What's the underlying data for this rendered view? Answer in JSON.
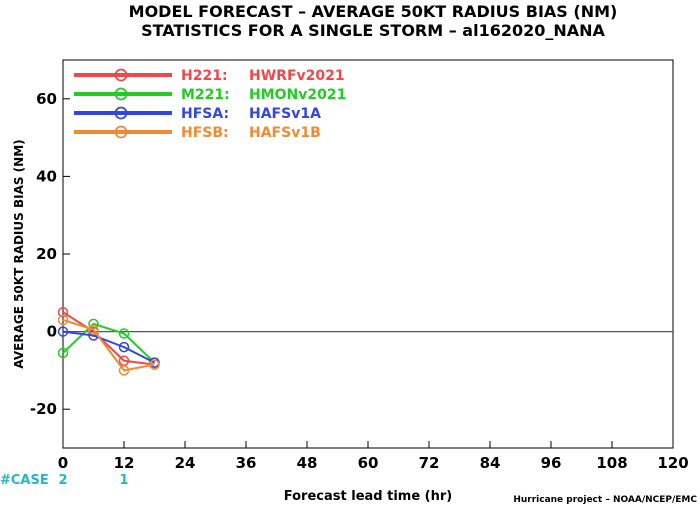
{
  "chart_data": {
    "type": "line",
    "title": "MODEL FORECAST – AVERAGE 50KT RADIUS BIAS (NM)",
    "subtitle": "STATISTICS FOR A SINGLE STORM – al162020_NANA",
    "xlabel": "Forecast lead time (hr)",
    "ylabel": "AVERAGE 50KT RADIUS BIAS (NM)",
    "xlim": [
      0,
      120
    ],
    "ylim": [
      -30,
      70
    ],
    "x_ticks": [
      0,
      12,
      24,
      36,
      48,
      60,
      72,
      84,
      96,
      108,
      120
    ],
    "y_ticks": [
      -20,
      0,
      20,
      40,
      60
    ],
    "zero_line": true,
    "legend_position": "top-left",
    "series": [
      {
        "name": "H221:",
        "label": "HWRFv2021",
        "color": "#f04848",
        "x": [
          0,
          6,
          12,
          18
        ],
        "y": [
          5,
          0,
          -7.5,
          -8.5
        ]
      },
      {
        "name": "M221:",
        "label": "HMONv2021",
        "color": "#22cc22",
        "x": [
          0,
          6,
          12,
          18
        ],
        "y": [
          -5.5,
          2,
          -0.5,
          -8
        ]
      },
      {
        "name": "HFSA:",
        "label": "HAFSv1A",
        "color": "#3346e0",
        "x": [
          0,
          6,
          12,
          18
        ],
        "y": [
          0,
          -1,
          -4,
          -8
        ]
      },
      {
        "name": "HFSB:",
        "label": "HAFSv1B",
        "color": "#f08a33",
        "x": [
          0,
          6,
          12,
          18
        ],
        "y": [
          3,
          0.5,
          -10,
          -8.5
        ]
      }
    ],
    "cases": {
      "label": "#CASE",
      "color": "#22b8c8",
      "entries": [
        {
          "x": 0,
          "count": "2"
        },
        {
          "x": 12,
          "count": "1"
        }
      ]
    },
    "credit": "Hurricane project – NOAA/NCEP/EMC"
  }
}
